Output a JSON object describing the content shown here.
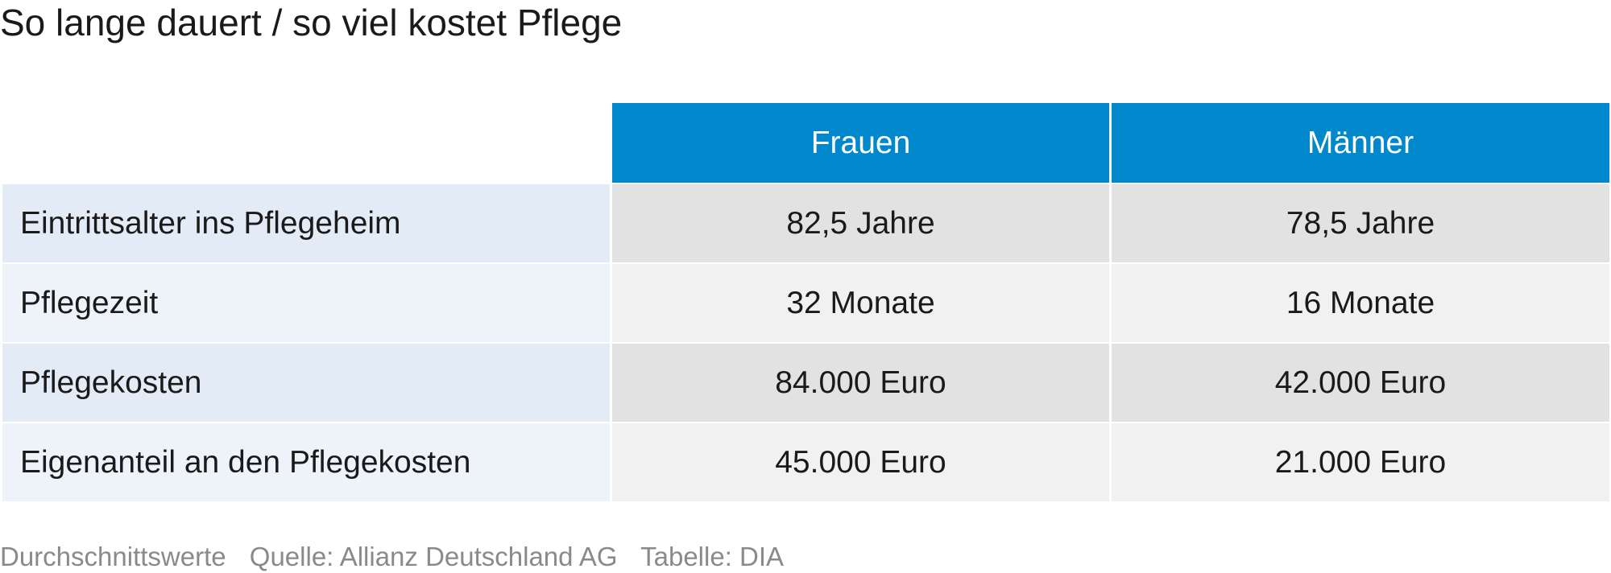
{
  "title": "So lange dauert / so viel kostet Pflege",
  "chart_data": {
    "type": "table",
    "title": "So lange dauert / so viel kostet Pflege",
    "columns": [
      "",
      "Frauen",
      "Männer"
    ],
    "rows": [
      [
        "Eintrittsalter ins Pflegeheim",
        "82,5 Jahre",
        "78,5 Jahre"
      ],
      [
        "Pflegezeit",
        "32 Monate",
        "16 Monate"
      ],
      [
        "Pflegekosten",
        "84.000 Euro",
        "42.000 Euro"
      ],
      [
        "Eigenanteil an den Pflegekosten",
        "45.000 Euro",
        "21.000 Euro"
      ]
    ]
  },
  "footer": {
    "note": "Durchschnittswerte",
    "source": "Quelle: Allianz Deutschland AG",
    "credit": "Tabelle: DIA"
  },
  "colors": {
    "header": "#0087cc",
    "label_odd": "#e3ebf6",
    "label_even": "#eef3fa",
    "value_odd": "#e2e2e2",
    "value_even": "#f1f1f1",
    "footer_text": "#8a8a8a"
  }
}
